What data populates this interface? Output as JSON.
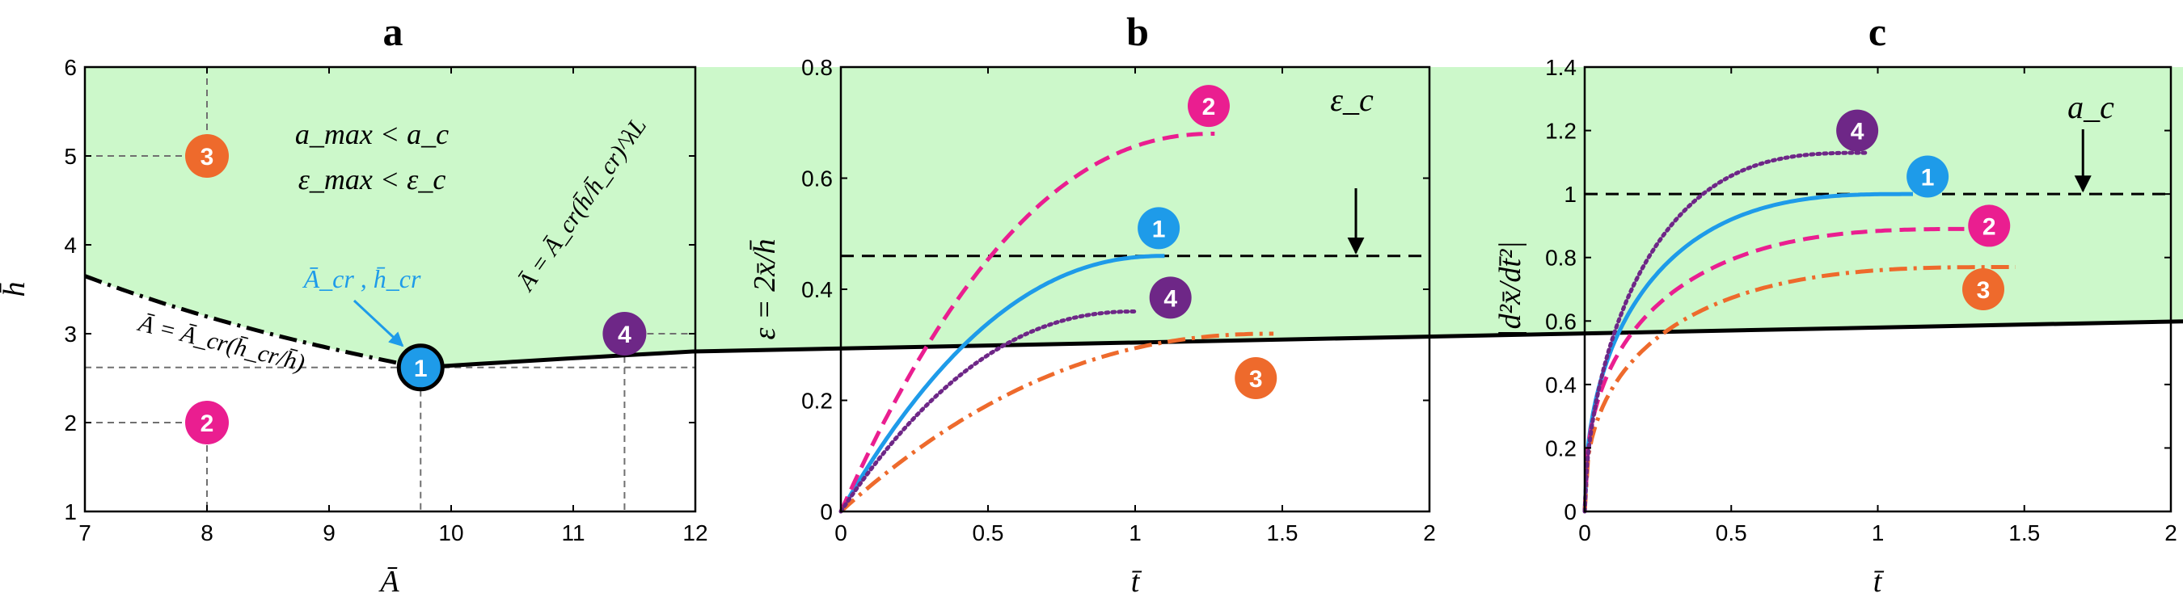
{
  "colors": {
    "blue": "#1E9BE9",
    "magenta": "#EA1E90",
    "orange": "#EE6A2C",
    "purple": "#6E2787",
    "region": "#CCF8CA",
    "grid": "#707070"
  },
  "chart_data": [
    {
      "id": "a",
      "type": "line",
      "title": "a",
      "xlabel": "Ā",
      "ylabel": "h̄",
      "xlim": [
        7,
        12
      ],
      "ylim": [
        1,
        6
      ],
      "xticks": [
        "7",
        "8",
        "9",
        "10",
        "11",
        "12"
      ],
      "yticks": [
        "1",
        "2",
        "3",
        "4",
        "5",
        "6"
      ],
      "critical_point": {
        "A": 9.75,
        "h": 2.62,
        "label": "1"
      },
      "curves": [
        {
          "name": "Ā = Ā_cr(h̄_cr/h̄)",
          "style": "dashdot",
          "note": "lower boundary"
        },
        {
          "name": "Ā = Ā_cr(h̄/h̄_cr)^λL",
          "style": "solid",
          "exponent": 3.1
        }
      ],
      "region_text": [
        "a_max < a_c",
        "ε_max < ε_c"
      ],
      "labels": {
        "critical": "Ā_cr , h̄_cr",
        "lower_curve": "Ā = Ā_cr(h̄_cr/h̄)",
        "upper_curve": "Ā = Ā_cr(h̄/h̄_cr)^λL"
      },
      "points": [
        {
          "label": "1",
          "A": 9.75,
          "h": 2.62,
          "color": "blue"
        },
        {
          "label": "2",
          "A": 8.0,
          "h": 2.0,
          "color": "magenta"
        },
        {
          "label": "3",
          "A": 8.0,
          "h": 5.0,
          "color": "orange"
        },
        {
          "label": "4",
          "A": 11.42,
          "h": 3.0,
          "color": "purple"
        }
      ]
    },
    {
      "id": "b",
      "type": "line",
      "title": "b",
      "xlabel": "t̄",
      "ylabel": "ε = 2x̄/h̄",
      "xlim": [
        0,
        2
      ],
      "ylim": [
        0,
        0.8
      ],
      "xticks": [
        "0",
        "0.5",
        "1",
        "1.5",
        "2"
      ],
      "yticks": [
        "0",
        "0.2",
        "0.4",
        "0.6",
        "0.8"
      ],
      "threshold": {
        "value": 0.46,
        "label": "ε_c",
        "arrow_x": 1.75
      },
      "series": [
        {
          "name": "1",
          "color": "blue",
          "style": "solid",
          "final": 0.46,
          "tend": 1.1,
          "badge_t": 1.08,
          "badge_y": 0.51
        },
        {
          "name": "2",
          "color": "magenta",
          "style": "dashed",
          "final": 0.68,
          "tend": 1.27,
          "badge_t": 1.25,
          "badge_y": 0.73
        },
        {
          "name": "3",
          "color": "orange",
          "style": "dashdot",
          "final": 0.32,
          "tend": 1.47,
          "badge_t": 1.41,
          "badge_y": 0.24
        },
        {
          "name": "4",
          "color": "purple",
          "style": "dotted",
          "final": 0.36,
          "tend": 1.0,
          "badge_t": 1.12,
          "badge_y": 0.385
        }
      ]
    },
    {
      "id": "c",
      "type": "line",
      "title": "c",
      "xlabel": "t̄",
      "ylabel": "|d²x̄/dt̄²|",
      "xlim": [
        0,
        2
      ],
      "ylim": [
        0,
        1.4
      ],
      "xticks": [
        "0",
        "0.5",
        "1",
        "1.5",
        "2"
      ],
      "yticks": [
        "0",
        "0.2",
        "0.4",
        "0.6",
        "0.8",
        "1",
        "1.2",
        "1.4"
      ],
      "threshold": {
        "value": 1.0,
        "label": "a_c",
        "arrow_x": 1.7
      },
      "series": [
        {
          "name": "1",
          "color": "blue",
          "style": "solid",
          "final": 1.0,
          "tend": 1.12,
          "badge_t": 1.17,
          "badge_y": 1.055
        },
        {
          "name": "2",
          "color": "magenta",
          "style": "dashed",
          "final": 0.89,
          "tend": 1.35,
          "badge_t": 1.38,
          "badge_y": 0.9
        },
        {
          "name": "3",
          "color": "orange",
          "style": "dashdot",
          "final": 0.77,
          "tend": 1.47,
          "badge_t": 1.36,
          "badge_y": 0.7
        },
        {
          "name": "4",
          "color": "purple",
          "style": "dotted",
          "final": 1.13,
          "tend": 0.97,
          "badge_t": 0.93,
          "badge_y": 1.2
        }
      ]
    }
  ]
}
